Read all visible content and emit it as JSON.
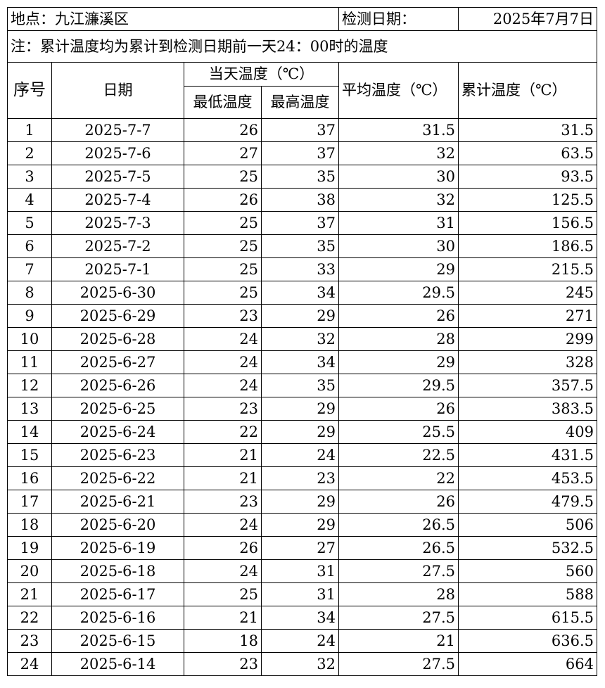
{
  "header": {
    "location": "地点：九江濂溪区",
    "date_label": "检测日期：",
    "date_value": "2025年7月7日",
    "note": "注：累计温度均为累计到检测日期前一天24：00时的温度"
  },
  "columns": {
    "index": "序号",
    "date": "日期",
    "day_temp": "当天温度（℃）",
    "min_temp": "最低温度",
    "max_temp": "最高温度",
    "avg_temp": "平均温度（℃）",
    "cum_temp": "累计温度（℃）"
  },
  "rows": [
    {
      "no": "1",
      "date": "2025-7-7",
      "min": "26",
      "max": "37",
      "avg": "31.5",
      "cum": "31.5"
    },
    {
      "no": "2",
      "date": "2025-7-6",
      "min": "27",
      "max": "37",
      "avg": "32",
      "cum": "63.5"
    },
    {
      "no": "3",
      "date": "2025-7-5",
      "min": "25",
      "max": "35",
      "avg": "30",
      "cum": "93.5"
    },
    {
      "no": "4",
      "date": "2025-7-4",
      "min": "26",
      "max": "38",
      "avg": "32",
      "cum": "125.5"
    },
    {
      "no": "5",
      "date": "2025-7-3",
      "min": "25",
      "max": "37",
      "avg": "31",
      "cum": "156.5"
    },
    {
      "no": "6",
      "date": "2025-7-2",
      "min": "25",
      "max": "35",
      "avg": "30",
      "cum": "186.5"
    },
    {
      "no": "7",
      "date": "2025-7-1",
      "min": "25",
      "max": "33",
      "avg": "29",
      "cum": "215.5"
    },
    {
      "no": "8",
      "date": "2025-6-30",
      "min": "25",
      "max": "34",
      "avg": "29.5",
      "cum": "245"
    },
    {
      "no": "9",
      "date": "2025-6-29",
      "min": "23",
      "max": "29",
      "avg": "26",
      "cum": "271"
    },
    {
      "no": "10",
      "date": "2025-6-28",
      "min": "24",
      "max": "32",
      "avg": "28",
      "cum": "299"
    },
    {
      "no": "11",
      "date": "2025-6-27",
      "min": "24",
      "max": "34",
      "avg": "29",
      "cum": "328"
    },
    {
      "no": "12",
      "date": "2025-6-26",
      "min": "24",
      "max": "35",
      "avg": "29.5",
      "cum": "357.5"
    },
    {
      "no": "13",
      "date": "2025-6-25",
      "min": "23",
      "max": "29",
      "avg": "26",
      "cum": "383.5"
    },
    {
      "no": "14",
      "date": "2025-6-24",
      "min": "22",
      "max": "29",
      "avg": "25.5",
      "cum": "409"
    },
    {
      "no": "15",
      "date": "2025-6-23",
      "min": "21",
      "max": "24",
      "avg": "22.5",
      "cum": "431.5"
    },
    {
      "no": "16",
      "date": "2025-6-22",
      "min": "21",
      "max": "23",
      "avg": "22",
      "cum": "453.5"
    },
    {
      "no": "17",
      "date": "2025-6-21",
      "min": "23",
      "max": "29",
      "avg": "26",
      "cum": "479.5"
    },
    {
      "no": "18",
      "date": "2025-6-20",
      "min": "24",
      "max": "29",
      "avg": "26.5",
      "cum": "506"
    },
    {
      "no": "19",
      "date": "2025-6-19",
      "min": "26",
      "max": "27",
      "avg": "26.5",
      "cum": "532.5"
    },
    {
      "no": "20",
      "date": "2025-6-18",
      "min": "24",
      "max": "31",
      "avg": "27.5",
      "cum": "560"
    },
    {
      "no": "21",
      "date": "2025-6-17",
      "min": "25",
      "max": "31",
      "avg": "28",
      "cum": "588"
    },
    {
      "no": "22",
      "date": "2025-6-16",
      "min": "21",
      "max": "34",
      "avg": "27.5",
      "cum": "615.5"
    },
    {
      "no": "23",
      "date": "2025-6-15",
      "min": "18",
      "max": "24",
      "avg": "21",
      "cum": "636.5"
    },
    {
      "no": "24",
      "date": "2025-6-14",
      "min": "23",
      "max": "32",
      "avg": "27.5",
      "cum": "664"
    }
  ]
}
